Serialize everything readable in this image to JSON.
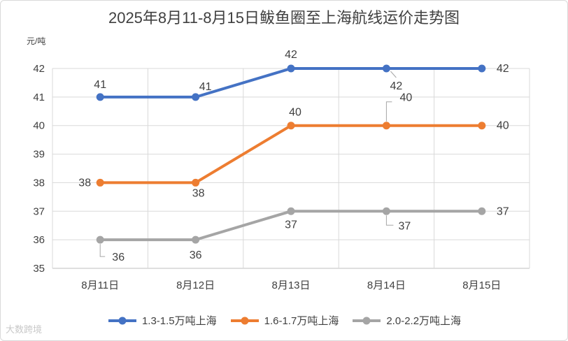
{
  "chart_data": {
    "type": "line",
    "title": "2025年8月11-8月15日鲅鱼圈至上海航线运价走势图",
    "ylabel": "元/吨",
    "xlabel": "",
    "categories": [
      "8月11日",
      "8月12日",
      "8月13日",
      "8月14日",
      "8月15日"
    ],
    "ylim": [
      35,
      42
    ],
    "yticks": [
      "35",
      "36",
      "37",
      "38",
      "39",
      "40",
      "41",
      "42"
    ],
    "grid": true,
    "legend_position": "bottom",
    "series": [
      {
        "name": "1.3-1.5万吨上海",
        "color": "#4472C4",
        "values": [
          41,
          41,
          42,
          42,
          42
        ]
      },
      {
        "name": "1.6-1.7万吨上海",
        "color": "#ED7D31",
        "values": [
          38,
          38,
          40,
          40,
          40
        ]
      },
      {
        "name": "2.0-2.2万吨上海",
        "color": "#A5A5A5",
        "values": [
          36,
          36,
          37,
          37,
          37
        ]
      }
    ]
  },
  "watermark": "大数跨境"
}
